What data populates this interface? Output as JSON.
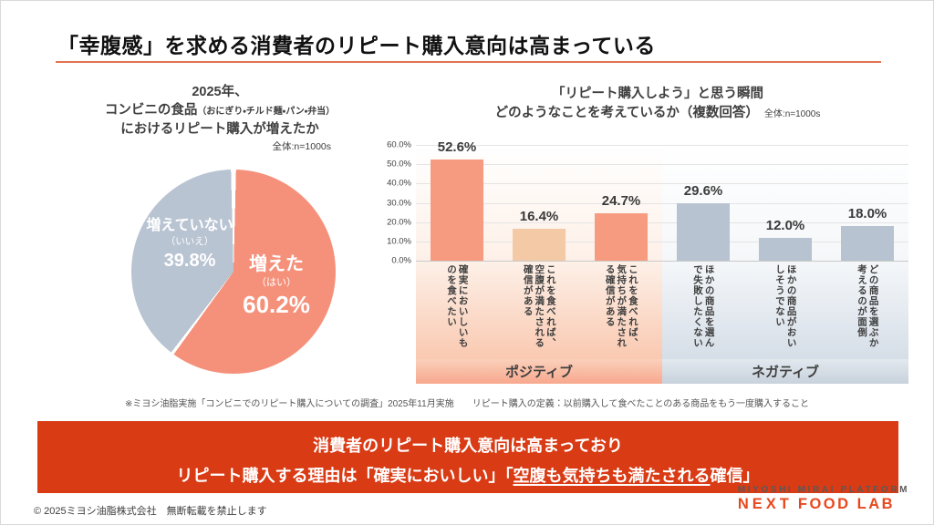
{
  "slide": {
    "title": "「幸腹感」を求める消費者のリピート購入意向は高まっている",
    "accent_color": "#DF7350"
  },
  "chart_data": [
    {
      "type": "pie",
      "title_line1": "2025年、",
      "title_line2_main": "コンビニの食品",
      "title_line2_note": "（おにぎり・チルド麺・パン・弁当）",
      "title_line3": "におけるリピート購入が増えたか",
      "sample_label": "全体:n=1000s",
      "start_angle_deg": 0,
      "direction": "clockwise",
      "slices": [
        {
          "label": "増えた",
          "sublabel": "（はい）",
          "value": 60.2,
          "value_label": "60.2%",
          "color": "#F5917B"
        },
        {
          "label": "増えていない",
          "sublabel": "（いいえ）",
          "value": 39.8,
          "value_label": "39.8%",
          "color": "#B9C4D2"
        }
      ]
    },
    {
      "type": "bar",
      "title_line1": "「リピート購入しよう」と思う瞬間",
      "title_line2": "どのようなことを考えているか（複数回答）",
      "sample_label": "全体:n=1000s",
      "ylim": [
        0,
        60
      ],
      "y_tick_labels": [
        "60.0%",
        "50.0%",
        "40.0%",
        "30.0%",
        "20.0%",
        "10.0%",
        "0.0%"
      ],
      "grid": true,
      "categories": [
        "確実においしいものを食べたい",
        "これを食べれば、空腹が満たされる確信がある",
        "これを食べれば、気持ちが満たされる確信がある",
        "ほかの商品を選んで失敗したくない",
        "ほかの商品がおいしそうでない",
        "どの商品を選ぶか考えるのが面倒"
      ],
      "values": [
        52.6,
        16.4,
        24.7,
        29.6,
        12.0,
        18.0
      ],
      "value_labels": [
        "52.6%",
        "16.4%",
        "24.7%",
        "29.6%",
        "12.0%",
        "18.0%"
      ],
      "bar_colors": [
        "#F79B80",
        "#F3C9A6",
        "#F79B80",
        "#B7C3D1",
        "#B7C3D1",
        "#B7C3D1"
      ],
      "groups": [
        {
          "label": "ポジティブ",
          "bar_indexes": [
            0,
            1,
            2
          ],
          "band_color": "#F8A88D"
        },
        {
          "label": "ネガティブ",
          "bar_indexes": [
            3,
            4,
            5
          ],
          "band_color": "#C8D2DC"
        }
      ]
    }
  ],
  "footnote": "※ミヨシ油脂実施「コンビニでのリピート購入についての調査」2025年11月実施　　リピート購入の定義：以前購入して食べたことのある商品をもう一度購入すること",
  "banner": {
    "background_color": "#D93B15",
    "line1": "消費者のリピート購入意向は高まっており",
    "line2_prefix": "リピート購入する理由は「確実においしい」「",
    "line2_underlined": "空腹も気持ちも満たされる",
    "line2_suffix": "確信」"
  },
  "footer": {
    "copyright": "© 2025ミヨシ油脂株式会社　無断転載を禁止します",
    "logo_platform": "MIYOSHI MIRAI PLATFORM",
    "logo_brand_light": "NEXT",
    "logo_brand_bold": "FOOD LAB"
  }
}
